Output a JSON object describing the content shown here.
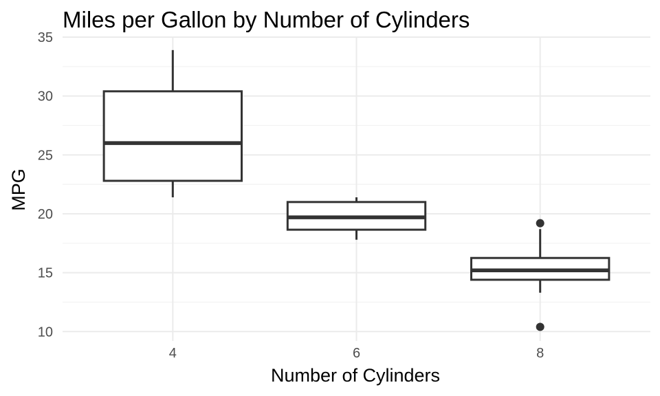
{
  "chart_data": {
    "type": "boxplot",
    "title": "Miles per Gallon by Number of Cylinders",
    "xlabel": "Number of Cylinders",
    "ylabel": "MPG",
    "x_ticks": [
      "4",
      "6",
      "8"
    ],
    "y_ticks": [
      10,
      15,
      20,
      25,
      30,
      35
    ],
    "ylim": [
      9.2,
      35.0
    ],
    "grid": true,
    "colors": {
      "box_stroke": "#333333",
      "grid": "#ebebeb",
      "background": "#ffffff"
    },
    "boxes": [
      {
        "category": "4",
        "min": 21.4,
        "q1": 22.8,
        "median": 26.0,
        "q3": 30.4,
        "max": 33.9,
        "outliers": []
      },
      {
        "category": "6",
        "min": 17.8,
        "q1": 18.65,
        "median": 19.7,
        "q3": 21.0,
        "max": 21.4,
        "outliers": []
      },
      {
        "category": "8",
        "min": 13.3,
        "q1": 14.4,
        "median": 15.2,
        "q3": 16.25,
        "max": 18.7,
        "outliers": [
          10.4,
          19.2
        ]
      }
    ]
  }
}
